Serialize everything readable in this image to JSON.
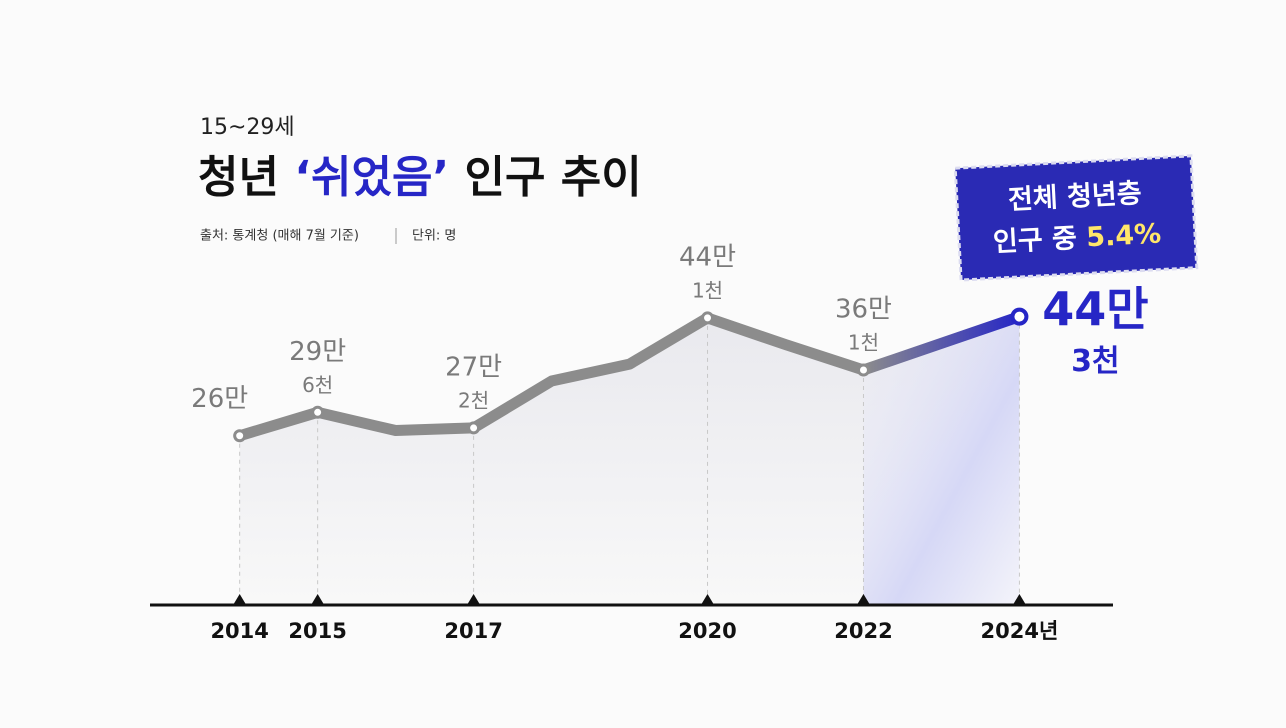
{
  "chart_data": {
    "type": "line",
    "subtitle": "15~29세",
    "title": [
      "청년",
      "‘쉬었음’",
      "인구 추이"
    ],
    "source": "출처: 통계청 (매해 7월 기준)",
    "unit": "단위: 명",
    "annotation": [
      "전체 청년층",
      "인구 중",
      "5.4%"
    ],
    "x": [
      2014,
      2015,
      2016,
      2017,
      2018,
      2019,
      2020,
      2021,
      2022,
      2023,
      2024
    ],
    "series": [
      {
        "name": "청년 쉬었음 인구",
        "color": "#8c8c8c",
        "highlight_color": "#2626c6",
        "values": [
          260000,
          296000,
          268000,
          272000,
          344000,
          370000,
          441000,
          400000,
          361000,
          402000,
          443000
        ],
        "value_labels": [
          [
            "26만"
          ],
          [
            "29만",
            "6천"
          ],
          null,
          [
            "27만",
            "2천"
          ],
          null,
          null,
          [
            "44만",
            "1천"
          ],
          null,
          [
            "36만",
            "1천"
          ],
          null,
          [
            "44만",
            "3천"
          ]
        ]
      }
    ],
    "xlim": [
      2012.85,
      2025.2
    ],
    "xticks": [
      2014,
      2015,
      2017,
      2020,
      2022,
      {
        "value": 2024,
        "label": "2024년"
      }
    ],
    "ylim": [
      0,
      600000
    ]
  }
}
